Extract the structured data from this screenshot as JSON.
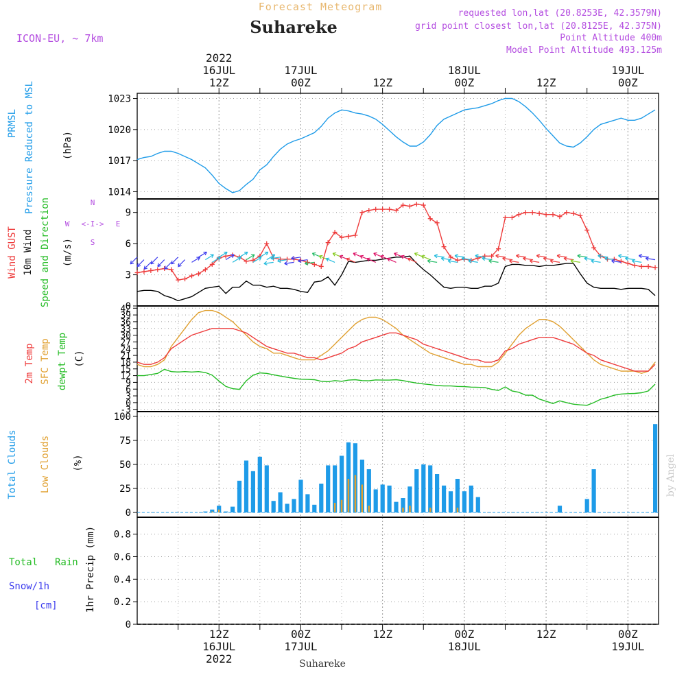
{
  "header": {
    "meteogram_title": "Forecast Meteogram",
    "location": "Suhareke",
    "model": "ICON-EU, ~ 7km",
    "requested": "requested lon,lat (20.8253E, 42.3579N)",
    "grid_point": "grid point closest lon,lat (20.8125E, 42.375N)",
    "point_altitude": "Point Altitude 400m",
    "model_altitude": "Model Point Altitude 493.125m",
    "footer_location": "Suhareke",
    "watermark": "by Angel"
  },
  "colors": {
    "pressure": "#1e9be8",
    "gust": "#ee3b3b",
    "wind": "#000000",
    "temp2m": "#ee3b3b",
    "sfc_temp": "#e0a030",
    "dewpt": "#22bb22",
    "total_clouds": "#1e9be8",
    "low_clouds": "#e0a030",
    "rain": "#22bb22",
    "snow": "#3a3aee",
    "title": "#e8b870",
    "purple": "#b44ee0"
  },
  "time_axis": {
    "top_labels": [
      {
        "t": 12,
        "lines": [
          "2022",
          "16JUL",
          "12Z"
        ]
      },
      {
        "t": 24,
        "lines": [
          "",
          "17JUL",
          "00Z"
        ]
      },
      {
        "t": 36,
        "lines": [
          "",
          "",
          "12Z"
        ]
      },
      {
        "t": 48,
        "lines": [
          "",
          "18JUL",
          "00Z"
        ]
      },
      {
        "t": 60,
        "lines": [
          "",
          "",
          "12Z"
        ]
      },
      {
        "t": 72,
        "lines": [
          "",
          "19JUL",
          "00Z"
        ]
      }
    ],
    "bottom_labels": [
      {
        "t": 12,
        "lines": [
          "12Z",
          "16JUL",
          "2022"
        ]
      },
      {
        "t": 24,
        "lines": [
          "00Z",
          "17JUL",
          ""
        ]
      },
      {
        "t": 36,
        "lines": [
          "12Z",
          "",
          ""
        ]
      },
      {
        "t": 48,
        "lines": [
          "00Z",
          "18JUL",
          ""
        ]
      },
      {
        "t": 60,
        "lines": [
          "12Z",
          "",
          ""
        ]
      },
      {
        "t": 72,
        "lines": [
          "00Z",
          "19JUL",
          ""
        ]
      }
    ]
  },
  "compass": {
    "n": "N",
    "s": "S",
    "w": "W",
    "e": "E",
    "arrows": "<-I->"
  },
  "panels": {
    "pressure": {
      "left_labels": [
        "PRMSL",
        "Pressure Reduced to MSL",
        "(hPa)"
      ]
    },
    "wind": {
      "left_labels": [
        "Wind GUST",
        "10m Wind",
        "Speed and Direction",
        "(m/s)"
      ]
    },
    "temp": {
      "left_labels": [
        "2m Temp",
        "SFC Temp",
        "dewpt Temp",
        "(C)"
      ]
    },
    "clouds": {
      "left_labels": [
        "Total Clouds",
        "Low Clouds",
        "(%)"
      ]
    },
    "precip": {
      "left_labels": [
        "Total",
        "Rain",
        "Snow/1h",
        "[cm]",
        "1hr Precip (mm)"
      ]
    }
  },
  "chart_data": [
    {
      "type": "line",
      "title": "PRMSL Pressure Reduced to MSL",
      "ylabel": "(hPa)",
      "ylim": [
        1013.3,
        1023.5
      ],
      "yticks": [
        1014,
        1017,
        1020,
        1023
      ],
      "grid": true,
      "x": [
        0,
        1,
        2,
        3,
        4,
        5,
        6,
        7,
        8,
        9,
        10,
        11,
        12,
        13,
        14,
        15,
        16,
        17,
        18,
        19,
        20,
        21,
        22,
        23,
        24,
        25,
        26,
        27,
        28,
        29,
        30,
        31,
        32,
        33,
        34,
        35,
        36,
        37,
        38,
        39,
        40,
        41,
        42,
        43,
        44,
        45,
        46,
        47,
        48,
        49,
        50,
        51,
        52,
        53,
        54,
        55,
        56,
        57,
        58,
        59,
        60,
        61,
        62,
        63,
        64,
        65,
        66,
        67,
        68,
        69,
        70,
        71,
        72,
        73,
        74,
        75,
        76
      ],
      "series": [
        {
          "name": "PRMSL",
          "values": [
            1017.1,
            1017.3,
            1017.4,
            1017.7,
            1017.9,
            1017.9,
            1017.7,
            1017.4,
            1017.1,
            1016.7,
            1016.3,
            1015.6,
            1014.8,
            1014.3,
            1013.9,
            1014.1,
            1014.7,
            1015.2,
            1016.1,
            1016.6,
            1017.4,
            1018.1,
            1018.6,
            1018.9,
            1019.1,
            1019.4,
            1019.7,
            1020.3,
            1021.1,
            1021.6,
            1021.9,
            1021.8,
            1021.6,
            1021.5,
            1021.3,
            1021.0,
            1020.5,
            1019.9,
            1019.3,
            1018.8,
            1018.4,
            1018.4,
            1018.8,
            1019.5,
            1020.4,
            1021.0,
            1021.3,
            1021.6,
            1021.9,
            1022.0,
            1022.1,
            1022.3,
            1022.5,
            1022.8,
            1023.0,
            1023.0,
            1022.7,
            1022.2,
            1021.6,
            1020.9,
            1020.1,
            1019.4,
            1018.7,
            1018.4,
            1018.3,
            1018.7,
            1019.3,
            1020.0,
            1020.5,
            1020.7,
            1020.9,
            1021.1,
            1020.9,
            1020.9,
            1021.1,
            1021.5,
            1021.9
          ]
        }
      ]
    },
    {
      "type": "line",
      "title": "Wind GUST / 10m Wind Speed and Direction",
      "ylabel": "(m/s)",
      "ylim": [
        0,
        10.3
      ],
      "yticks": [
        0,
        3,
        6,
        9
      ],
      "grid": true,
      "x": [
        0,
        1,
        2,
        3,
        4,
        5,
        6,
        7,
        8,
        9,
        10,
        11,
        12,
        13,
        14,
        15,
        16,
        17,
        18,
        19,
        20,
        21,
        22,
        23,
        24,
        25,
        26,
        27,
        28,
        29,
        30,
        31,
        32,
        33,
        34,
        35,
        36,
        37,
        38,
        39,
        40,
        41,
        42,
        43,
        44,
        45,
        46,
        47,
        48,
        49,
        50,
        51,
        52,
        53,
        54,
        55,
        56,
        57,
        58,
        59,
        60,
        61,
        62,
        63,
        64,
        65,
        66,
        67,
        68,
        69,
        70,
        71,
        72,
        73,
        74,
        75,
        76
      ],
      "series": [
        {
          "name": "Wind GUST",
          "values": [
            3.2,
            3.3,
            3.4,
            3.5,
            3.6,
            3.5,
            2.5,
            2.6,
            2.9,
            3.1,
            3.5,
            4.0,
            4.6,
            4.8,
            4.9,
            4.7,
            4.3,
            4.4,
            4.8,
            6.0,
            4.6,
            4.5,
            4.5,
            4.5,
            4.4,
            4.2,
            4.0,
            3.8,
            6.1,
            7.1,
            6.6,
            6.7,
            6.8,
            9.0,
            9.2,
            9.3,
            9.3,
            9.3,
            9.2,
            9.7,
            9.6,
            9.8,
            9.7,
            8.4,
            8.0,
            5.7,
            4.7,
            4.4,
            4.5,
            4.4,
            4.6,
            4.8,
            4.8,
            5.5,
            8.5,
            8.5,
            8.8,
            9.0,
            9.0,
            8.9,
            8.8,
            8.8,
            8.6,
            9.0,
            8.9,
            8.7,
            7.3,
            5.6,
            4.8,
            4.5,
            4.5,
            4.3,
            4.1,
            3.9,
            3.8,
            3.8,
            3.7
          ]
        },
        {
          "name": "10m Wind",
          "values": [
            1.4,
            1.5,
            1.5,
            1.4,
            1.0,
            0.8,
            0.5,
            0.7,
            0.9,
            1.3,
            1.7,
            1.8,
            1.9,
            1.2,
            1.8,
            1.8,
            2.4,
            2.0,
            2.0,
            1.8,
            1.9,
            1.7,
            1.7,
            1.6,
            1.4,
            1.3,
            2.3,
            2.4,
            2.8,
            2.0,
            3.0,
            4.3,
            4.2,
            4.3,
            4.4,
            4.4,
            4.5,
            4.6,
            4.7,
            4.7,
            4.8,
            4.1,
            3.5,
            3.0,
            2.4,
            1.8,
            1.7,
            1.8,
            1.8,
            1.7,
            1.7,
            1.9,
            1.9,
            2.2,
            3.8,
            4.0,
            4.0,
            3.9,
            3.9,
            3.8,
            3.9,
            3.9,
            4.0,
            4.1,
            4.1,
            3.1,
            2.2,
            1.8,
            1.7,
            1.7,
            1.7,
            1.6,
            1.7,
            1.7,
            1.7,
            1.6,
            1.0
          ]
        }
      ],
      "direction_arrows_color_by_speed": true
    },
    {
      "type": "line",
      "title": "2m Temp / SFC Temp / dewpt Temp",
      "ylabel": "(C)",
      "ylim": [
        -4,
        43
      ],
      "yticks": [
        -3,
        0,
        3,
        6,
        9,
        12,
        15,
        18,
        21,
        24,
        27,
        30,
        33,
        36,
        39,
        42
      ],
      "grid": true,
      "x": [
        0,
        1,
        2,
        3,
        4,
        5,
        6,
        7,
        8,
        9,
        10,
        11,
        12,
        13,
        14,
        15,
        16,
        17,
        18,
        19,
        20,
        21,
        22,
        23,
        24,
        25,
        26,
        27,
        28,
        29,
        30,
        31,
        32,
        33,
        34,
        35,
        36,
        37,
        38,
        39,
        40,
        41,
        42,
        43,
        44,
        45,
        46,
        47,
        48,
        49,
        50,
        51,
        52,
        53,
        54,
        55,
        56,
        57,
        58,
        59,
        60,
        61,
        62,
        63,
        64,
        65,
        66,
        67,
        68,
        69,
        70,
        71,
        72,
        73,
        74,
        75,
        76
      ],
      "series": [
        {
          "name": "2m Temp",
          "values": [
            18,
            17,
            17,
            18,
            20,
            24,
            26,
            28,
            30,
            31,
            32,
            33,
            33,
            33,
            33,
            32,
            31,
            29,
            27,
            25,
            24,
            23,
            22,
            22,
            21,
            20,
            20,
            19,
            20,
            21,
            22,
            24,
            25,
            27,
            28,
            29,
            30,
            31,
            31,
            30,
            29,
            28,
            26,
            25,
            24,
            23,
            22,
            21,
            20,
            19,
            19,
            18,
            18,
            19,
            23,
            24,
            26,
            27,
            28,
            29,
            29,
            29,
            28,
            27,
            26,
            24,
            22,
            21,
            19,
            18,
            17,
            16,
            15,
            14,
            14,
            14,
            17
          ]
        },
        {
          "name": "SFC Temp",
          "values": [
            17,
            16,
            16,
            17,
            19,
            25,
            29,
            33,
            37,
            40,
            41,
            41,
            40,
            38,
            36,
            33,
            30,
            27,
            25,
            24,
            22,
            22,
            21,
            20,
            19,
            19,
            19,
            21,
            23,
            26,
            29,
            32,
            35,
            37,
            38,
            38,
            37,
            35,
            33,
            30,
            28,
            26,
            24,
            22,
            21,
            20,
            19,
            18,
            17,
            17,
            16,
            16,
            16,
            18,
            22,
            26,
            30,
            33,
            35,
            37,
            37,
            36,
            34,
            31,
            28,
            25,
            22,
            19,
            17,
            16,
            15,
            14,
            14,
            14,
            13,
            14,
            18
          ]
        },
        {
          "name": "dewpt Temp",
          "values": [
            12,
            12,
            12.5,
            13,
            14.8,
            13.8,
            13.6,
            13.8,
            13.6,
            13.8,
            13.4,
            12.2,
            9.6,
            7.2,
            6.2,
            5.9,
            9.7,
            12.2,
            13.2,
            13,
            12.4,
            11.8,
            11.3,
            10.8,
            10.4,
            10.3,
            10.2,
            9.5,
            9.3,
            9.8,
            9.5,
            10,
            10.2,
            9.8,
            9.7,
            10.1,
            10,
            10,
            10.2,
            9.8,
            9.2,
            8.7,
            8.3,
            8,
            7.6,
            7.4,
            7.4,
            7.2,
            7.1,
            6.9,
            6.8,
            6.7,
            5.9,
            5.4,
            7,
            5.2,
            4.6,
            3.3,
            3.3,
            1.6,
            0.6,
            -0.4,
            0.8,
            0,
            -0.7,
            -1,
            -1.2,
            0,
            1.5,
            2.3,
            3.3,
            3.8,
            4,
            4.1,
            4.4,
            5.2,
            8.2
          ]
        }
      ]
    },
    {
      "type": "bar",
      "title": "Total Clouds / Low Clouds",
      "ylabel": "(%)",
      "ylim": [
        -5,
        105
      ],
      "yticks": [
        0,
        25,
        50,
        75,
        100
      ],
      "grid": true,
      "x": [
        0,
        1,
        2,
        3,
        4,
        5,
        6,
        7,
        8,
        9,
        10,
        11,
        12,
        13,
        14,
        15,
        16,
        17,
        18,
        19,
        20,
        21,
        22,
        23,
        24,
        25,
        26,
        27,
        28,
        29,
        30,
        31,
        32,
        33,
        34,
        35,
        36,
        37,
        38,
        39,
        40,
        41,
        42,
        43,
        44,
        45,
        46,
        47,
        48,
        49,
        50,
        51,
        52,
        53,
        54,
        55,
        56,
        57,
        58,
        59,
        60,
        61,
        62,
        63,
        64,
        65,
        66,
        67,
        68,
        69,
        70,
        71,
        72,
        73,
        74,
        75,
        76
      ],
      "series": [
        {
          "name": "Total Clouds",
          "values": [
            0,
            0,
            0,
            0,
            0,
            0,
            0,
            0,
            0,
            0,
            1,
            3,
            7,
            1,
            6,
            33,
            54,
            43,
            58,
            49,
            12,
            21,
            9,
            14,
            34,
            19,
            8,
            30,
            49,
            49,
            59,
            73,
            72,
            55,
            45,
            24,
            29,
            28,
            11,
            15,
            27,
            45,
            50,
            49,
            40,
            28,
            22,
            35,
            22,
            28,
            16,
            0,
            0,
            0,
            0,
            0,
            0,
            0,
            0,
            0,
            0,
            0,
            7,
            0,
            0,
            0,
            14,
            45,
            0,
            0,
            0,
            0,
            0,
            0,
            0,
            0,
            92
          ]
        },
        {
          "name": "Low Clouds",
          "values": [
            0,
            0,
            0,
            0,
            0,
            0,
            0,
            0,
            0,
            0,
            0,
            1,
            3,
            0,
            0,
            0,
            0,
            0,
            0,
            0,
            0,
            0,
            0,
            0,
            0,
            0,
            0,
            0,
            0,
            10,
            13,
            35,
            39,
            29,
            7,
            0,
            0,
            0,
            0,
            5,
            7,
            0,
            0,
            5,
            0,
            0,
            0,
            5,
            0,
            0,
            0,
            0,
            0,
            0,
            0,
            0,
            0,
            0,
            0,
            0,
            0,
            0,
            0,
            0,
            0,
            0,
            0,
            0,
            0,
            0,
            0,
            0,
            0,
            0,
            0,
            0,
            0
          ]
        }
      ]
    },
    {
      "type": "bar",
      "title": "1hr Precip",
      "ylabel": "1hr Precip (mm)",
      "ylim": [
        0,
        0.95
      ],
      "yticks": [
        0,
        0.2,
        0.4,
        0.6,
        0.8
      ],
      "ytick_labels": [
        "0",
        "0.2",
        "0.4",
        "0.6",
        "0.8"
      ],
      "grid": true,
      "series": [
        {
          "name": "Total Rain",
          "values": []
        },
        {
          "name": "Snow/1h",
          "values": []
        }
      ]
    }
  ]
}
